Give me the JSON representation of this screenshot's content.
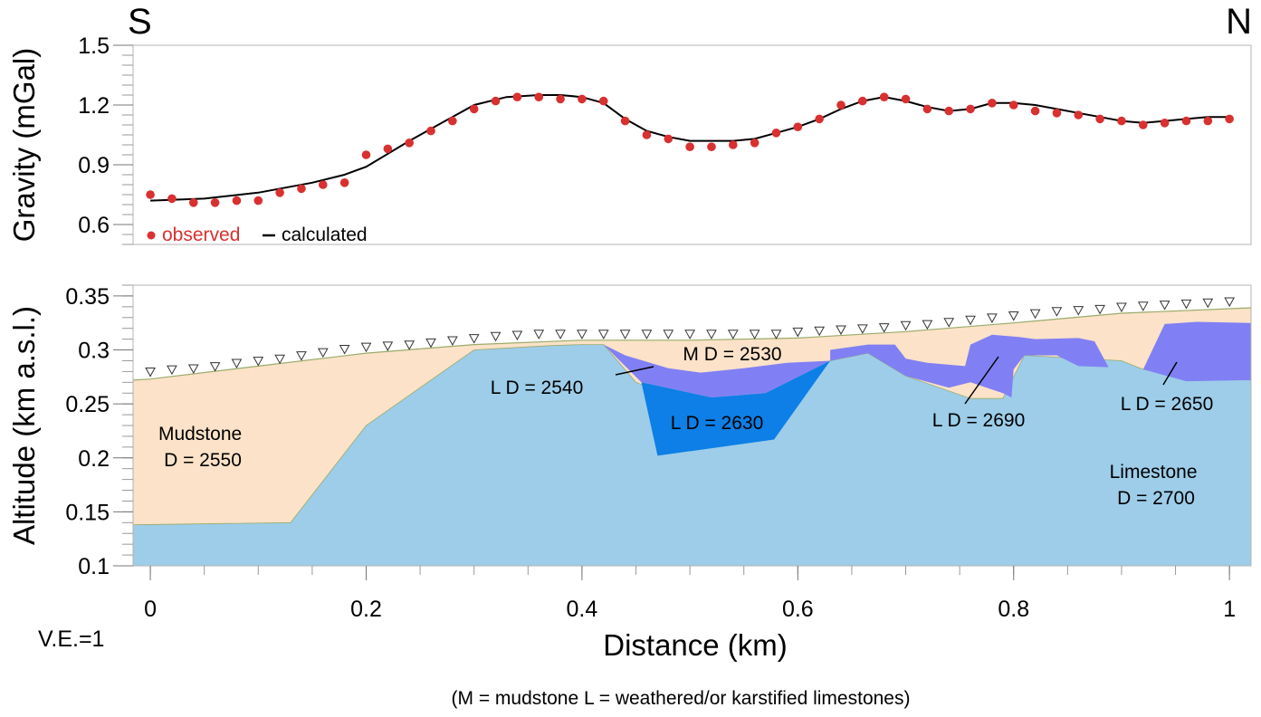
{
  "direction": {
    "left": "S",
    "right": "N"
  },
  "vertical_exaggeration": "V.E.=1",
  "footnote": "(M = mudstone L = weathered/or karstified limestones)",
  "colors": {
    "observed": "#d93030",
    "calculated": "#000000",
    "mudstone": "#fbe2c8",
    "limestone": "#9dcde9",
    "weathered_light": "#8080f4",
    "karst_dark": "#0d7fe6",
    "surface_line": "#9aab6a"
  },
  "chart_data": [
    {
      "type": "scatter",
      "panel": "gravity",
      "ylabel": "Gravity (mGal)",
      "ylim": [
        0.5,
        1.5
      ],
      "xlim": [
        -0.016,
        1.02
      ],
      "yticks": [
        0.6,
        0.9,
        1.2,
        1.5
      ],
      "ytick_labels": [
        "0.6",
        "0.9",
        "1.2",
        "1.5"
      ],
      "legend": {
        "observed": "observed",
        "calculated": "calculated",
        "placement": "bottom-left"
      },
      "series": [
        {
          "name": "observed",
          "x": [
            0,
            0.02,
            0.04,
            0.06,
            0.08,
            0.1,
            0.12,
            0.14,
            0.16,
            0.18,
            0.2,
            0.22,
            0.24,
            0.26,
            0.28,
            0.3,
            0.32,
            0.34,
            0.36,
            0.38,
            0.4,
            0.42,
            0.44,
            0.46,
            0.48,
            0.5,
            0.52,
            0.54,
            0.56,
            0.58,
            0.6,
            0.62,
            0.64,
            0.66,
            0.68,
            0.7,
            0.72,
            0.74,
            0.76,
            0.78,
            0.8,
            0.82,
            0.84,
            0.86,
            0.88,
            0.9,
            0.92,
            0.94,
            0.96,
            0.98,
            1.0
          ],
          "y": [
            0.75,
            0.73,
            0.71,
            0.71,
            0.72,
            0.72,
            0.76,
            0.78,
            0.8,
            0.81,
            0.95,
            0.98,
            1.01,
            1.07,
            1.12,
            1.18,
            1.22,
            1.24,
            1.24,
            1.23,
            1.23,
            1.22,
            1.12,
            1.05,
            1.03,
            0.99,
            0.99,
            1.0,
            1.01,
            1.06,
            1.09,
            1.13,
            1.2,
            1.22,
            1.24,
            1.23,
            1.18,
            1.17,
            1.18,
            1.21,
            1.2,
            1.17,
            1.16,
            1.15,
            1.13,
            1.12,
            1.1,
            1.11,
            1.12,
            1.12,
            1.13
          ]
        },
        {
          "name": "calculated",
          "x": [
            0,
            0.05,
            0.1,
            0.15,
            0.18,
            0.2,
            0.24,
            0.27,
            0.3,
            0.33,
            0.36,
            0.38,
            0.4,
            0.42,
            0.44,
            0.46,
            0.48,
            0.5,
            0.52,
            0.54,
            0.56,
            0.58,
            0.6,
            0.62,
            0.64,
            0.66,
            0.68,
            0.7,
            0.72,
            0.74,
            0.76,
            0.78,
            0.8,
            0.82,
            0.84,
            0.86,
            0.88,
            0.9,
            0.92,
            0.94,
            0.96,
            0.98,
            1.0
          ],
          "y": [
            0.72,
            0.73,
            0.76,
            0.81,
            0.85,
            0.89,
            1.02,
            1.11,
            1.2,
            1.24,
            1.25,
            1.25,
            1.24,
            1.21,
            1.13,
            1.07,
            1.04,
            1.02,
            1.02,
            1.02,
            1.03,
            1.06,
            1.09,
            1.13,
            1.18,
            1.22,
            1.24,
            1.22,
            1.19,
            1.17,
            1.18,
            1.21,
            1.21,
            1.2,
            1.18,
            1.16,
            1.14,
            1.12,
            1.11,
            1.12,
            1.13,
            1.14,
            1.14
          ]
        }
      ]
    },
    {
      "type": "area",
      "panel": "cross-section",
      "xlabel": "Distance (km)",
      "ylabel": "Altitude (km a.s.l.)",
      "xlim": [
        -0.016,
        1.02
      ],
      "ylim": [
        0.1,
        0.36
      ],
      "xticks": [
        0,
        0.2,
        0.4,
        0.6,
        0.8,
        1
      ],
      "xtick_labels": [
        "0",
        "0.2",
        "0.4",
        "0.6",
        "0.8",
        "1"
      ],
      "yticks": [
        0.1,
        0.15,
        0.2,
        0.25,
        0.3,
        0.35
      ],
      "ytick_labels": [
        "0.1",
        "0.15",
        "0.2",
        "0.25",
        "0.3",
        "0.35"
      ],
      "surface": {
        "x": [
          -0.016,
          0.0,
          0.1,
          0.2,
          0.3,
          0.4,
          0.5,
          0.6,
          0.7,
          0.8,
          0.9,
          1.02
        ],
        "y": [
          0.272,
          0.273,
          0.285,
          0.297,
          0.305,
          0.309,
          0.309,
          0.311,
          0.317,
          0.325,
          0.334,
          0.339
        ]
      },
      "stations": {
        "x": [
          0,
          0.02,
          0.04,
          0.06,
          0.08,
          0.1,
          0.12,
          0.14,
          0.16,
          0.18,
          0.2,
          0.22,
          0.24,
          0.26,
          0.28,
          0.3,
          0.32,
          0.34,
          0.36,
          0.38,
          0.4,
          0.42,
          0.44,
          0.46,
          0.48,
          0.5,
          0.52,
          0.54,
          0.56,
          0.58,
          0.6,
          0.62,
          0.64,
          0.66,
          0.68,
          0.7,
          0.72,
          0.74,
          0.76,
          0.78,
          0.8,
          0.82,
          0.84,
          0.86,
          0.88,
          0.9,
          0.92,
          0.94,
          0.96,
          0.98,
          1.0
        ],
        "y": [
          0.274,
          0.276,
          0.277,
          0.279,
          0.282,
          0.284,
          0.286,
          0.289,
          0.292,
          0.295,
          0.297,
          0.298,
          0.299,
          0.301,
          0.303,
          0.305,
          0.307,
          0.308,
          0.309,
          0.309,
          0.309,
          0.309,
          0.309,
          0.309,
          0.309,
          0.309,
          0.309,
          0.309,
          0.309,
          0.309,
          0.311,
          0.312,
          0.313,
          0.314,
          0.315,
          0.317,
          0.318,
          0.32,
          0.322,
          0.324,
          0.326,
          0.328,
          0.33,
          0.331,
          0.332,
          0.334,
          0.335,
          0.336,
          0.337,
          0.338,
          0.339
        ]
      },
      "bodies": [
        {
          "label_lines": [
            "Limestone",
            "D = 2700"
          ],
          "rock": "limestone",
          "density": 2700,
          "polygon": [
            [
              -0.016,
              0.1
            ],
            [
              -0.016,
              0.138
            ],
            [
              0.13,
              0.14
            ],
            [
              0.2,
              0.23
            ],
            [
              0.3,
              0.3
            ],
            [
              0.37,
              0.304
            ],
            [
              0.4,
              0.305
            ],
            [
              0.42,
              0.305
            ],
            [
              0.45,
              0.27
            ],
            [
              0.57,
              0.22
            ],
            [
              0.595,
              0.27
            ],
            [
              0.63,
              0.29
            ],
            [
              0.665,
              0.297
            ],
            [
              0.7,
              0.276
            ],
            [
              0.76,
              0.255
            ],
            [
              0.79,
              0.255
            ],
            [
              0.81,
              0.295
            ],
            [
              0.9,
              0.29
            ],
            [
              0.92,
              0.282
            ],
            [
              1.02,
              0.272
            ],
            [
              1.02,
              0.1
            ]
          ]
        },
        {
          "label_lines": [
            "L D = 2540"
          ],
          "rock": "weathered limestone",
          "density": 2540,
          "polygon": [
            [
              0.42,
              0.305
            ],
            [
              0.44,
              0.295
            ],
            [
              0.48,
              0.283
            ],
            [
              0.51,
              0.279
            ],
            [
              0.55,
              0.283
            ],
            [
              0.59,
              0.288
            ],
            [
              0.63,
              0.29
            ],
            [
              0.57,
              0.26
            ],
            [
              0.52,
              0.256
            ],
            [
              0.455,
              0.27
            ]
          ]
        },
        {
          "label_lines": [
            "L D = 2630"
          ],
          "rock": "karstified limestone",
          "density": 2630,
          "polygon": [
            [
              0.455,
              0.27
            ],
            [
              0.52,
              0.256
            ],
            [
              0.57,
              0.26
            ],
            [
              0.63,
              0.29
            ],
            [
              0.578,
              0.217
            ],
            [
              0.47,
              0.202
            ]
          ]
        },
        {
          "label_lines": [
            "L D = 2690"
          ],
          "rock": "weathered limestone",
          "density": 2690,
          "polygon": [
            [
              0.63,
              0.3
            ],
            [
              0.665,
              0.305
            ],
            [
              0.69,
              0.305
            ],
            [
              0.7,
              0.292
            ],
            [
              0.72,
              0.288
            ],
            [
              0.755,
              0.285
            ],
            [
              0.76,
              0.305
            ],
            [
              0.78,
              0.314
            ],
            [
              0.805,
              0.312
            ],
            [
              0.82,
              0.31
            ],
            [
              0.86,
              0.311
            ],
            [
              0.875,
              0.308
            ],
            [
              0.888,
              0.284
            ],
            [
              0.86,
              0.285
            ],
            [
              0.84,
              0.295
            ],
            [
              0.81,
              0.295
            ],
            [
              0.8,
              0.282
            ],
            [
              0.798,
              0.256
            ],
            [
              0.79,
              0.26
            ],
            [
              0.76,
              0.27
            ],
            [
              0.74,
              0.265
            ],
            [
              0.7,
              0.276
            ],
            [
              0.665,
              0.297
            ],
            [
              0.63,
              0.29
            ]
          ]
        },
        {
          "label_lines": [
            "L D = 2650"
          ],
          "rock": "weathered limestone",
          "density": 2650,
          "polygon": [
            [
              0.92,
              0.282
            ],
            [
              0.94,
              0.324
            ],
            [
              0.97,
              0.326
            ],
            [
              1.02,
              0.325
            ],
            [
              1.02,
              0.272
            ],
            [
              0.96,
              0.271
            ]
          ]
        },
        {
          "label_lines": [
            "Mudstone",
            "D = 2550"
          ],
          "rock": "mudstone",
          "density": 2550
        },
        {
          "label_lines": [
            "M D = 2530"
          ],
          "rock": "mudstone",
          "density": 2530
        }
      ],
      "annotations": [
        {
          "text": "L D = 2540",
          "target": [
            0.458,
            0.292
          ]
        },
        {
          "text": "L D = 2690",
          "target": [
            0.785,
            0.295
          ]
        },
        {
          "text": "L D = 2650",
          "target": [
            0.948,
            0.284
          ]
        }
      ]
    }
  ]
}
